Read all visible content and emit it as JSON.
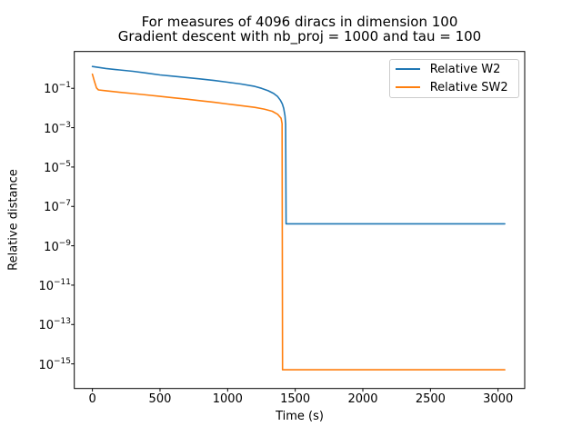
{
  "chart_data": {
    "type": "line",
    "title_line1": "For measures of 4096 diracs in dimension 100",
    "title_line2": "Gradient descent with nb_proj = 1000 and tau = 100",
    "xlabel": "Time (s)",
    "ylabel": "Relative distance",
    "x_ticks": [
      0,
      500,
      1000,
      1500,
      2000,
      2500,
      3000
    ],
    "y_tick_exponents": [
      -1,
      -3,
      -5,
      -7,
      -9,
      -11,
      -13,
      -15
    ],
    "xlim": [
      -134,
      3197
    ],
    "ylog_lim": [
      0.87,
      -16.25
    ],
    "y_scale": "log",
    "grid": false,
    "legend_position": "upper right",
    "axis_color": "#000000",
    "series": [
      {
        "name": "Relative W2",
        "color": "#1f77b4",
        "points": [
          [
            0,
            1.28
          ],
          [
            100,
            1.02
          ],
          [
            200,
            0.86
          ],
          [
            300,
            0.73
          ],
          [
            400,
            0.6
          ],
          [
            500,
            0.48
          ],
          [
            600,
            0.41
          ],
          [
            700,
            0.35
          ],
          [
            800,
            0.3
          ],
          [
            900,
            0.25
          ],
          [
            1000,
            0.205
          ],
          [
            1100,
            0.165
          ],
          [
            1200,
            0.125
          ],
          [
            1250,
            0.1
          ],
          [
            1300,
            0.075
          ],
          [
            1340,
            0.055
          ],
          [
            1370,
            0.038
          ],
          [
            1390,
            0.025
          ],
          [
            1405,
            0.016
          ],
          [
            1415,
            0.0095
          ],
          [
            1424,
            0.004
          ],
          [
            1429,
            0.0015
          ],
          [
            1432,
            1.3e-08
          ],
          [
            3050,
            1.3e-08
          ]
        ]
      },
      {
        "name": "Relative SW2",
        "color": "#ff7f0e",
        "points": [
          [
            0,
            0.52
          ],
          [
            15,
            0.22
          ],
          [
            30,
            0.105
          ],
          [
            45,
            0.083
          ],
          [
            100,
            0.075
          ],
          [
            200,
            0.063
          ],
          [
            300,
            0.054
          ],
          [
            400,
            0.046
          ],
          [
            500,
            0.039
          ],
          [
            600,
            0.033
          ],
          [
            700,
            0.028
          ],
          [
            800,
            0.0235
          ],
          [
            900,
            0.0195
          ],
          [
            1000,
            0.016
          ],
          [
            1100,
            0.0132
          ],
          [
            1200,
            0.0108
          ],
          [
            1270,
            0.0088
          ],
          [
            1330,
            0.0068
          ],
          [
            1370,
            0.0048
          ],
          [
            1395,
            0.003
          ],
          [
            1403,
            0.0016
          ],
          [
            1406,
            5e-16
          ],
          [
            3050,
            5e-16
          ]
        ]
      }
    ]
  }
}
